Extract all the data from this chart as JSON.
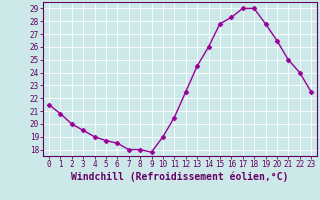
{
  "x": [
    0,
    1,
    2,
    3,
    4,
    5,
    6,
    7,
    8,
    9,
    10,
    11,
    12,
    13,
    14,
    15,
    16,
    17,
    18,
    19,
    20,
    21,
    22,
    23
  ],
  "y": [
    21.5,
    20.8,
    20.0,
    19.5,
    19.0,
    18.7,
    18.5,
    18.0,
    18.0,
    17.8,
    19.0,
    20.5,
    22.5,
    24.5,
    26.0,
    27.8,
    28.3,
    29.0,
    29.0,
    27.8,
    26.5,
    25.0,
    24.0,
    22.5
  ],
  "line_color": "#990099",
  "marker": "D",
  "markersize": 2.5,
  "linewidth": 1.0,
  "xlim": [
    -0.5,
    23.5
  ],
  "ylim": [
    17.5,
    29.5
  ],
  "yticks": [
    18,
    19,
    20,
    21,
    22,
    23,
    24,
    25,
    26,
    27,
    28,
    29
  ],
  "xticks": [
    0,
    1,
    2,
    3,
    4,
    5,
    6,
    7,
    8,
    9,
    10,
    11,
    12,
    13,
    14,
    15,
    16,
    17,
    18,
    19,
    20,
    21,
    22,
    23
  ],
  "xlabel": "Windchill (Refroidissement éolien,°C)",
  "background_color": "#cce8e8",
  "grid_color": "#ffffff",
  "tick_label_fontsize": 5.5,
  "xlabel_fontsize": 7.0,
  "label_color": "#660066",
  "spine_color": "#660066"
}
